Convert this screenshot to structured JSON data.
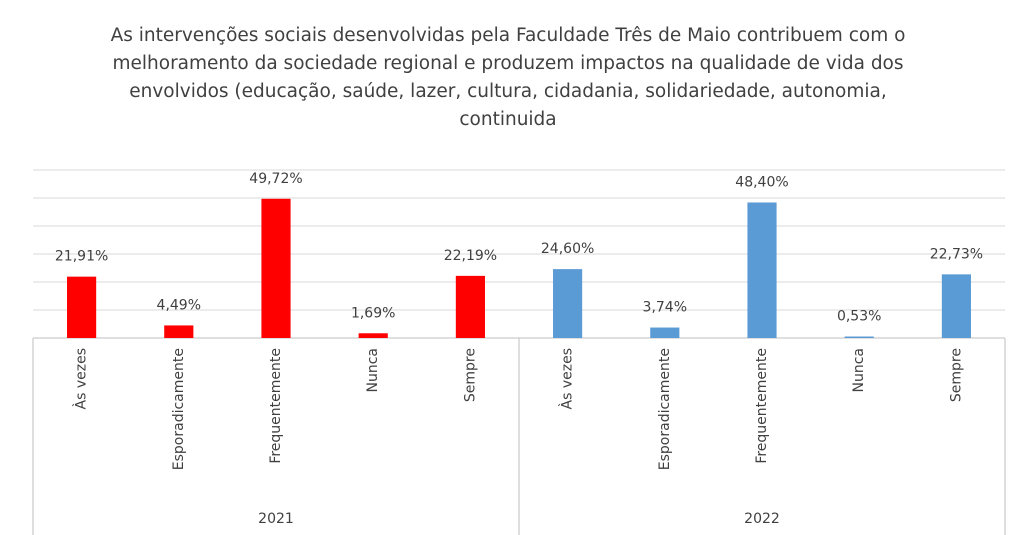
{
  "chart_data": {
    "type": "bar",
    "title": "As intervenções sociais desenvolvidas pela Faculdade Três de Maio contribuem com o melhoramento da sociedade regional e produzem impactos na qualidade de vida dos envolvidos (educação, saúde, lazer, cultura, cidadania, solidariedade, autonomia, continuida",
    "groups": [
      {
        "name": "2021",
        "color": "#ff0000",
        "categories": [
          "Às vezes",
          "Esporadicamente",
          "Frequentemente",
          "Nunca",
          "Sempre"
        ],
        "values": [
          21.91,
          4.49,
          49.72,
          1.69,
          22.19
        ],
        "value_labels": [
          "21,91%",
          "4,49%",
          "49,72%",
          "1,69%",
          "22,19%"
        ]
      },
      {
        "name": "2022",
        "color": "#5b9bd5",
        "categories": [
          "Às vezes",
          "Esporadicamente",
          "Frequentemente",
          "Nunca",
          "Sempre"
        ],
        "values": [
          24.6,
          3.74,
          48.4,
          0.53,
          22.73
        ],
        "value_labels": [
          "24,60%",
          "3,74%",
          "48,40%",
          "0,53%",
          "22,73%"
        ]
      }
    ],
    "ylim": [
      0,
      60
    ],
    "yticks": [
      0,
      10,
      20,
      30,
      40,
      50,
      60
    ],
    "grid": true
  }
}
